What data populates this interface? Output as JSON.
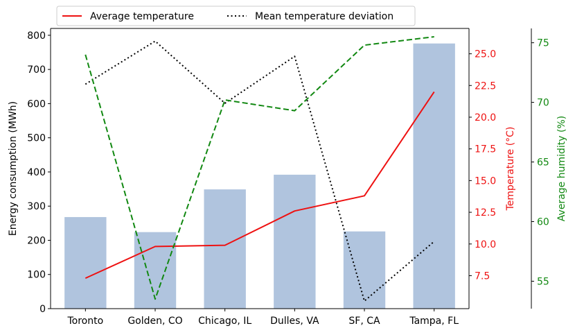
{
  "chart_data": {
    "type": "bar",
    "categories": [
      "Toronto",
      "Golden, CO",
      "Chicago, IL",
      "Dulles, VA",
      "SF, CA",
      "Tampa, FL"
    ],
    "title": "",
    "xlabel": "",
    "series": [
      {
        "type": "bar",
        "axis": "left",
        "values": [
          268,
          224,
          349,
          392,
          226,
          776
        ],
        "color": "#b0c4de"
      },
      {
        "type": "line",
        "axis": "temperature",
        "name": "Average temperature",
        "values": [
          7.3,
          9.8,
          9.9,
          12.6,
          13.8,
          22.0
        ],
        "color": "#ee1111"
      },
      {
        "type": "line",
        "axis": "temperature",
        "name": "Mean temperature deviation",
        "values": [
          22.6,
          26.0,
          21.1,
          24.8,
          5.5,
          10.2
        ],
        "color": "#000000",
        "dash": "dotted"
      },
      {
        "type": "line",
        "axis": "humidity",
        "values": [
          74.0,
          53.5,
          70.2,
          69.3,
          74.8,
          75.5
        ],
        "color": "#118811",
        "dash": "dashed"
      }
    ],
    "axes": {
      "left": {
        "label": "Energy consumption (MWh)",
        "min": 0,
        "max": 820,
        "ticks": [
          0,
          100,
          200,
          300,
          400,
          500,
          600,
          700,
          800
        ],
        "color": "#000000"
      },
      "temperature": {
        "label": "Temperature (°C)",
        "min": 4.9,
        "max": 27.0,
        "ticks": [
          "7.5",
          "10.0",
          "12.5",
          "15.0",
          "17.5",
          "20.0",
          "22.5",
          "25.0"
        ],
        "color": "#ee1111"
      },
      "humidity": {
        "label": "Average humidity (%)",
        "min": 52.7,
        "max": 76.2,
        "ticks": [
          55,
          60,
          65,
          70,
          75
        ],
        "color": "#118811"
      }
    },
    "legend": {
      "placement": "top-left",
      "entries": [
        "Average temperature",
        "Mean temperature deviation"
      ]
    },
    "grid": false
  }
}
